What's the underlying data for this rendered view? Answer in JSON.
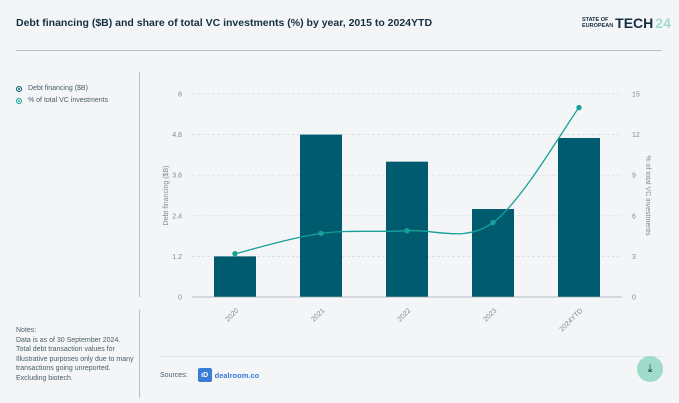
{
  "header": {
    "title": "Debt financing ($B) and share of total VC investments (%) by year, 2015 to 2024YTD",
    "logo": {
      "line1": "STATE OF",
      "line2": "EUROPEAN",
      "big": "TECH",
      "num": "24"
    }
  },
  "legend": [
    {
      "label": "Debt financing ($B)",
      "color": "#005b6e"
    },
    {
      "label": "% of total VC investments",
      "color": "#17a09a"
    }
  ],
  "notes": {
    "heading": "Notes:",
    "text": "Data is as of 30 September 2024. Total debt transaction values for Illustrative purposes only due to many transactions going unreported. Excluding biotech."
  },
  "sources": {
    "label": "Sources:",
    "name": "dealroom.co",
    "logo_text": "ıD"
  },
  "download": {
    "icon": "download-icon"
  },
  "chart_data": {
    "type": "bar",
    "categories": [
      "2020",
      "2021",
      "2022",
      "2023",
      "2024YTD"
    ],
    "series": [
      {
        "name": "Debt financing ($B)",
        "type": "bar",
        "axis": "left",
        "values": [
          1.2,
          4.8,
          4.0,
          2.6,
          4.7
        ],
        "color": "#005b6e"
      },
      {
        "name": "% of total VC investments",
        "type": "line",
        "axis": "right",
        "values": [
          3.2,
          4.7,
          4.9,
          5.5,
          14.0
        ],
        "color": "#17a09a"
      }
    ],
    "ylabel": "Debt financing ($B)",
    "y2label": "% of total VC investments",
    "ylim": [
      0,
      6
    ],
    "y2lim": [
      0,
      15
    ],
    "yticks": [
      "0",
      "1.2",
      "2.4",
      "3.6",
      "4.8",
      "6"
    ],
    "y2ticks": [
      "0",
      "3",
      "6",
      "9",
      "12",
      "15"
    ],
    "grid": true,
    "legend_position": "left"
  }
}
